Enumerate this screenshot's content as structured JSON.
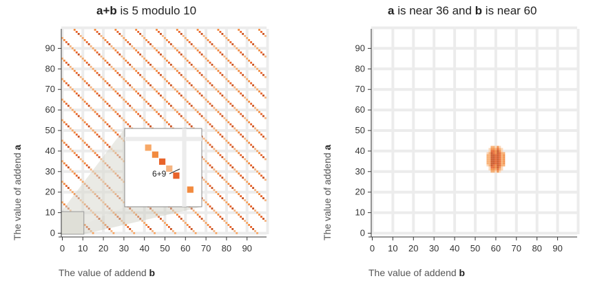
{
  "chart_data": [
    {
      "type": "heatmap",
      "title_bold": "a+b",
      "title_rest": " is 5 modulo 10",
      "xlabel_prefix": "The value of addend ",
      "xlabel_var": "b",
      "ylabel_prefix": "The value of addend ",
      "ylabel_var": "a",
      "xlim": [
        0,
        99
      ],
      "ylim": [
        0,
        99
      ],
      "xticks": [
        0,
        10,
        20,
        30,
        40,
        50,
        60,
        70,
        80,
        90
      ],
      "yticks": [
        0,
        10,
        20,
        30,
        40,
        50,
        60,
        70,
        80,
        90
      ],
      "pattern": "cells where (a + b) mod 10 = 5",
      "colors": [
        "#f7a867",
        "#f28a3e",
        "#e8632a",
        "#c9501f",
        "#f5b481"
      ],
      "inset": {
        "x_range": [
          0,
          11
        ],
        "y_range": [
          0,
          11
        ],
        "cells": [
          {
            "b": 1,
            "a": 4
          },
          {
            "b": 2,
            "a": 3
          },
          {
            "b": 3,
            "a": 2
          },
          {
            "b": 4,
            "a": 1
          },
          {
            "b": 5,
            "a": 0
          },
          {
            "b": 7,
            "a": -2
          }
        ],
        "annotation": "6+9"
      }
    },
    {
      "type": "heatmap",
      "title_bold_a": "a",
      "title_mid": " is near 36 and ",
      "title_bold_b": "b",
      "title_rest": " is near 60",
      "xlabel_prefix": "The value of addend ",
      "xlabel_var": "b",
      "ylabel_prefix": "The value of addend ",
      "ylabel_var": "a",
      "xlim": [
        0,
        99
      ],
      "ylim": [
        0,
        99
      ],
      "xticks": [
        0,
        10,
        20,
        30,
        40,
        50,
        60,
        70,
        80,
        90
      ],
      "yticks": [
        0,
        10,
        20,
        30,
        40,
        50,
        60,
        70,
        80,
        90
      ],
      "cluster_center": {
        "b": 60,
        "a": 36
      },
      "cluster_spread": {
        "b": 4,
        "a": 6
      },
      "colors": [
        "#fbd3b0",
        "#f7a867",
        "#f28a3e",
        "#e8632a",
        "#c9501f"
      ]
    }
  ]
}
